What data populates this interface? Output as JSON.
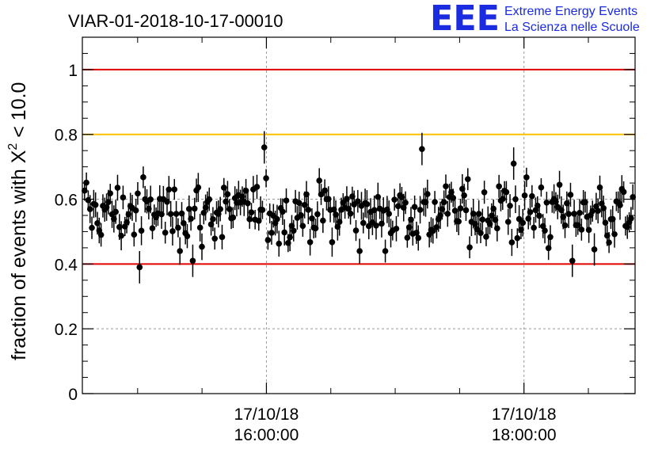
{
  "chart_data": {
    "type": "scatter",
    "title": "VIAR-01-2018-10-17-00010",
    "ylabel_text": "fraction of events with X",
    "ylabel_sup": "2",
    "ylabel_tail": " < 10.0",
    "ylim": [
      0,
      1.1
    ],
    "y_ticks": [
      0,
      0.2,
      0.4,
      0.6,
      0.8,
      1
    ],
    "y_tick_labels": [
      "0",
      "0.2",
      "0.4",
      "0.6",
      "0.8",
      "1"
    ],
    "x_ticks": [
      {
        "x": 0.333,
        "line1": "17/10/18",
        "line2": "16:00:00"
      },
      {
        "x": 0.799,
        "line1": "17/10/18",
        "line2": "18:00:00"
      }
    ],
    "grid": true,
    "reference_lines": [
      {
        "y": 1.0,
        "color": "#e00000"
      },
      {
        "y": 0.8,
        "color": "#ffc000"
      },
      {
        "y": 0.4,
        "color": "#e00000"
      }
    ],
    "marker_color": "#000000",
    "n_points": 300,
    "mean_y": 0.56,
    "typical_error": 0.035,
    "outliers": [
      {
        "x": 0.33,
        "y": 0.76
      },
      {
        "x": 0.616,
        "y": 0.755
      },
      {
        "x": 0.779,
        "y": 0.71
      },
      {
        "x": 0.105,
        "y": 0.39
      },
      {
        "x": 0.2,
        "y": 0.41
      },
      {
        "x": 0.885,
        "y": 0.41
      },
      {
        "x": 0.925,
        "y": 0.445
      }
    ]
  },
  "logo": {
    "mark": "EEE",
    "line1": "Extreme Energy Events",
    "line2": "La Scienza nelle Scuole",
    "color": "#1a2be0"
  }
}
